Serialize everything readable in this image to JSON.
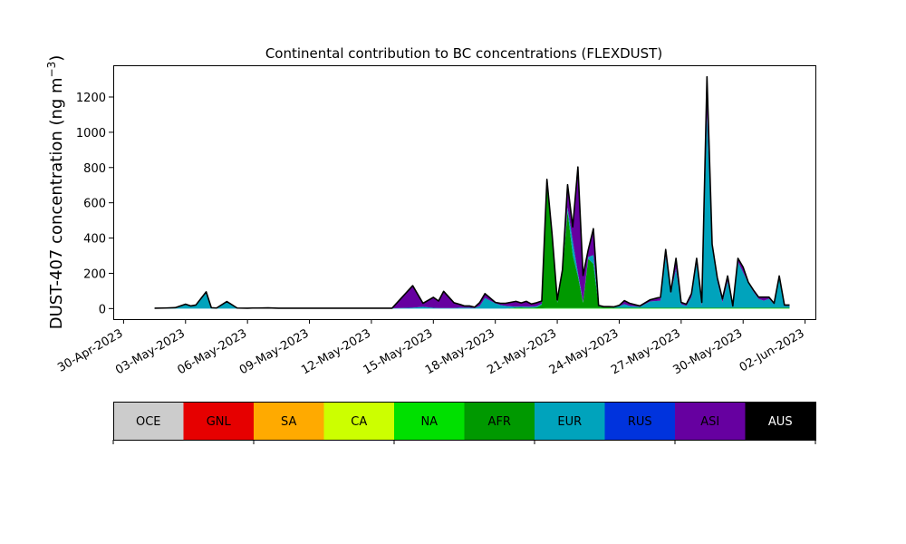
{
  "chart_data": {
    "type": "area",
    "stacked": true,
    "title": "Continental contribution to BC concentrations (FLEXDUST)",
    "ylabel_main": "DUST-407 concentration (ng m",
    "ylabel_sup": "−3",
    "ylabel_close": ")",
    "xlabel": "",
    "xlim": [
      "2023-04-29T12:00",
      "2023-06-02T12:00"
    ],
    "ylim": [
      -60,
      1380
    ],
    "yticks": [
      0,
      200,
      400,
      600,
      800,
      1000,
      1200
    ],
    "xticks": [
      {
        "date": "2023-04-30",
        "label": "30-Apr-2023"
      },
      {
        "date": "2023-05-03",
        "label": "03-May-2023"
      },
      {
        "date": "2023-05-06",
        "label": "06-May-2023"
      },
      {
        "date": "2023-05-09",
        "label": "09-May-2023"
      },
      {
        "date": "2023-05-12",
        "label": "12-May-2023"
      },
      {
        "date": "2023-05-15",
        "label": "15-May-2023"
      },
      {
        "date": "2023-05-18",
        "label": "18-May-2023"
      },
      {
        "date": "2023-05-21",
        "label": "21-May-2023"
      },
      {
        "date": "2023-05-24",
        "label": "24-May-2023"
      },
      {
        "date": "2023-05-27",
        "label": "27-May-2023"
      },
      {
        "date": "2023-05-30",
        "label": "30-May-2023"
      },
      {
        "date": "2023-06-02",
        "label": "02-Jun-2023"
      }
    ],
    "x": [
      "2023-05-01T12:00",
      "2023-05-02T00:00",
      "2023-05-02T12:00",
      "2023-05-03T00:00",
      "2023-05-03T06:00",
      "2023-05-03T12:00",
      "2023-05-04T00:00",
      "2023-05-04T06:00",
      "2023-05-04T12:00",
      "2023-05-05T00:00",
      "2023-05-05T12:00",
      "2023-05-06T00:00",
      "2023-05-06T06:00",
      "2023-05-06T12:00",
      "2023-05-07T00:00",
      "2023-05-07T12:00",
      "2023-05-08T00:00",
      "2023-05-08T12:00",
      "2023-05-09T00:00",
      "2023-05-10T00:00",
      "2023-05-11T00:00",
      "2023-05-12T00:00",
      "2023-05-13T00:00",
      "2023-05-14T00:00",
      "2023-05-14T12:00",
      "2023-05-15T00:00",
      "2023-05-15T06:00",
      "2023-05-15T12:00",
      "2023-05-16T00:00",
      "2023-05-16T06:00",
      "2023-05-16T12:00",
      "2023-05-16T18:00",
      "2023-05-17T00:00",
      "2023-05-17T06:00",
      "2023-05-17T12:00",
      "2023-05-18T00:00",
      "2023-05-18T06:00",
      "2023-05-18T12:00",
      "2023-05-19T00:00",
      "2023-05-19T06:00",
      "2023-05-19T12:00",
      "2023-05-19T18:00",
      "2023-05-20T00:00",
      "2023-05-20T06:00",
      "2023-05-20T12:00",
      "2023-05-20T18:00",
      "2023-05-21T00:00",
      "2023-05-21T06:00",
      "2023-05-21T12:00",
      "2023-05-21T18:00",
      "2023-05-22T00:00",
      "2023-05-22T06:00",
      "2023-05-22T12:00",
      "2023-05-22T18:00",
      "2023-05-23T00:00",
      "2023-05-23T06:00",
      "2023-05-23T12:00",
      "2023-05-23T18:00",
      "2023-05-24T00:00",
      "2023-05-24T06:00",
      "2023-05-24T12:00",
      "2023-05-25T00:00",
      "2023-05-25T12:00",
      "2023-05-26T00:00",
      "2023-05-26T06:00",
      "2023-05-26T12:00",
      "2023-05-26T18:00",
      "2023-05-27T00:00",
      "2023-05-27T06:00",
      "2023-05-27T12:00",
      "2023-05-27T18:00",
      "2023-05-28T00:00",
      "2023-05-28T06:00",
      "2023-05-28T12:00",
      "2023-05-28T18:00",
      "2023-05-29T00:00",
      "2023-05-29T06:00",
      "2023-05-29T12:00",
      "2023-05-29T18:00",
      "2023-05-30T00:00",
      "2023-05-30T06:00",
      "2023-05-30T12:00",
      "2023-05-30T18:00",
      "2023-05-31T00:00",
      "2023-05-31T06:00",
      "2023-05-31T12:00",
      "2023-05-31T18:00",
      "2023-06-01T00:00",
      "2023-06-01T06:00"
    ],
    "series": [
      {
        "name": "OCE",
        "color": "#cccccc",
        "values": [
          0,
          0,
          0,
          0,
          0,
          0,
          0,
          0,
          0,
          0,
          0,
          0,
          0,
          0,
          0,
          0,
          0,
          0,
          0,
          0,
          0,
          0,
          0,
          0,
          0,
          0,
          0,
          0,
          0,
          0,
          0,
          0,
          0,
          0,
          0,
          0,
          0,
          0,
          0,
          0,
          0,
          0,
          0,
          0,
          0,
          0,
          0,
          0,
          0,
          0,
          0,
          0,
          0,
          0,
          0,
          0,
          0,
          0,
          0,
          0,
          0,
          0,
          0,
          0,
          0,
          0,
          0,
          0,
          0,
          0,
          0,
          0,
          0,
          0,
          0,
          0,
          0,
          0,
          0,
          0,
          0,
          0,
          0,
          0,
          0,
          0,
          0,
          0,
          0
        ]
      },
      {
        "name": "GNL",
        "color": "#e60000",
        "values": [
          0,
          0,
          0,
          0,
          0,
          0,
          0,
          0,
          0,
          0,
          0,
          0,
          0,
          0,
          0,
          0,
          0,
          0,
          0,
          0,
          0,
          0,
          0,
          0,
          0,
          0,
          0,
          0,
          0,
          0,
          0,
          0,
          0,
          0,
          0,
          0,
          0,
          0,
          0,
          0,
          0,
          0,
          0,
          0,
          0,
          0,
          0,
          0,
          0,
          0,
          0,
          0,
          0,
          0,
          0,
          0,
          0,
          0,
          0,
          0,
          0,
          0,
          0,
          0,
          0,
          0,
          0,
          0,
          0,
          0,
          0,
          0,
          0,
          0,
          0,
          0,
          0,
          0,
          0,
          0,
          0,
          0,
          0,
          0,
          0,
          0,
          0,
          0,
          0
        ]
      },
      {
        "name": "SA",
        "color": "#ffaa00",
        "values": [
          0,
          0,
          0,
          0,
          0,
          0,
          0,
          0,
          0,
          0,
          0,
          0,
          0,
          0,
          0,
          0,
          0,
          0,
          0,
          0,
          0,
          0,
          0,
          0,
          0,
          0,
          0,
          0,
          0,
          0,
          0,
          0,
          0,
          0,
          0,
          0,
          0,
          0,
          0,
          0,
          0,
          0,
          0,
          0,
          0,
          0,
          0,
          0,
          0,
          0,
          0,
          0,
          0,
          0,
          0,
          0,
          0,
          0,
          0,
          0,
          0,
          0,
          0,
          0,
          0,
          0,
          0,
          0,
          0,
          0,
          0,
          0,
          0,
          0,
          0,
          0,
          0,
          0,
          0,
          0,
          0,
          0,
          0,
          0,
          0,
          0,
          0,
          0,
          0
        ]
      },
      {
        "name": "CA",
        "color": "#ccff00",
        "values": [
          0,
          0,
          0,
          0,
          0,
          0,
          0,
          0,
          0,
          0,
          0,
          0,
          0,
          0,
          0,
          0,
          0,
          0,
          0,
          0,
          0,
          0,
          0,
          0,
          0,
          0,
          0,
          0,
          0,
          0,
          0,
          0,
          0,
          0,
          0,
          0,
          0,
          0,
          0,
          0,
          0,
          0,
          0,
          0,
          0,
          0,
          0,
          0,
          0,
          0,
          0,
          0,
          0,
          0,
          0,
          0,
          0,
          0,
          0,
          0,
          0,
          0,
          0,
          0,
          0,
          0,
          0,
          0,
          0,
          0,
          0,
          0,
          0,
          0,
          0,
          0,
          0,
          0,
          0,
          0,
          0,
          0,
          0,
          0,
          0,
          0,
          0,
          0,
          0
        ]
      },
      {
        "name": "NA",
        "color": "#00e000",
        "values": [
          0,
          0,
          0,
          0,
          0,
          0,
          0,
          0,
          0,
          0,
          0,
          0,
          0,
          0,
          0,
          0,
          0,
          0,
          0,
          0,
          0,
          0,
          0,
          0,
          0,
          0,
          0,
          0,
          0,
          0,
          0,
          0,
          0,
          0,
          0,
          0,
          0,
          0,
          2,
          2,
          2,
          2,
          2,
          2,
          3,
          3,
          3,
          3,
          3,
          3,
          3,
          3,
          3,
          3,
          3,
          2,
          2,
          2,
          2,
          2,
          2,
          2,
          2,
          2,
          2,
          2,
          2,
          2,
          2,
          2,
          2,
          2,
          2,
          2,
          2,
          2,
          2,
          2,
          2,
          2,
          2,
          2,
          2,
          2,
          2,
          2,
          2,
          2,
          2
        ]
      },
      {
        "name": "AFR",
        "color": "#009900",
        "values": [
          0,
          0,
          0,
          0,
          0,
          0,
          0,
          0,
          0,
          0,
          0,
          0,
          0,
          0,
          0,
          0,
          0,
          0,
          0,
          0,
          0,
          0,
          0,
          0,
          0,
          0,
          0,
          0,
          0,
          0,
          0,
          0,
          0,
          0,
          0,
          0,
          0,
          0,
          3,
          4,
          3,
          3,
          5,
          20,
          700,
          400,
          30,
          200,
          550,
          300,
          180,
          30,
          280,
          250,
          10,
          5,
          5,
          3,
          3,
          3,
          3,
          3,
          3,
          3,
          3,
          3,
          3,
          3,
          3,
          3,
          3,
          3,
          3,
          3,
          3,
          3,
          3,
          3,
          3,
          3,
          3,
          3,
          3,
          3,
          3,
          3,
          3,
          3,
          3
        ]
      },
      {
        "name": "EUR",
        "color": "#00a3bc",
        "values": [
          2,
          3,
          5,
          25,
          15,
          20,
          90,
          5,
          3,
          35,
          3,
          2,
          3,
          3,
          2,
          2,
          2,
          2,
          2,
          2,
          2,
          2,
          2,
          5,
          10,
          4,
          3,
          3,
          3,
          5,
          5,
          5,
          3,
          15,
          60,
          30,
          20,
          15,
          6,
          6,
          6,
          6,
          6,
          6,
          10,
          8,
          6,
          6,
          20,
          80,
          20,
          5,
          10,
          50,
          5,
          4,
          4,
          5,
          8,
          20,
          10,
          5,
          35,
          40,
          290,
          80,
          220,
          20,
          10,
          60,
          250,
          10,
          1100,
          350,
          150,
          30,
          150,
          10,
          260,
          200,
          140,
          90,
          50,
          40,
          50,
          20,
          170,
          10,
          10
        ]
      },
      {
        "name": "RUS",
        "color": "#0033dd",
        "values": [
          0,
          0,
          0,
          0,
          0,
          0,
          0,
          0,
          0,
          0,
          0,
          0,
          0,
          0,
          0,
          0,
          0,
          0,
          0,
          0,
          0,
          0,
          0,
          0,
          0,
          0,
          0,
          0,
          0,
          0,
          0,
          0,
          0,
          0,
          0,
          0,
          0,
          0,
          0,
          0,
          0,
          0,
          0,
          0,
          0,
          0,
          0,
          0,
          0,
          0,
          0,
          0,
          0,
          0,
          0,
          0,
          0,
          0,
          0,
          0,
          0,
          0,
          0,
          0,
          0,
          0,
          0,
          0,
          0,
          0,
          0,
          0,
          0,
          0,
          0,
          0,
          0,
          0,
          0,
          0,
          0,
          0,
          0,
          0,
          0,
          0,
          0,
          0,
          0
        ]
      },
      {
        "name": "ASI",
        "color": "#6600a0",
        "values": [
          0,
          0,
          0,
          0,
          0,
          0,
          5,
          0,
          0,
          5,
          0,
          0,
          0,
          0,
          2,
          0,
          0,
          0,
          0,
          0,
          0,
          0,
          0,
          125,
          20,
          60,
          40,
          95,
          30,
          20,
          10,
          10,
          5,
          20,
          25,
          5,
          10,
          15,
          30,
          20,
          30,
          15,
          20,
          15,
          20,
          10,
          10,
          10,
          130,
          80,
          600,
          150,
          40,
          150,
          0,
          0,
          0,
          0,
          5,
          20,
          15,
          5,
          10,
          20,
          40,
          10,
          60,
          10,
          10,
          20,
          30,
          20,
          210,
          10,
          20,
          20,
          30,
          0,
          20,
          30,
          5,
          10,
          10,
          20,
          10,
          5,
          10,
          5,
          5
        ]
      },
      {
        "name": "AUS",
        "color": "#000000",
        "values": [
          0,
          0,
          0,
          0,
          0,
          0,
          0,
          0,
          0,
          0,
          0,
          0,
          0,
          0,
          0,
          0,
          0,
          0,
          0,
          0,
          0,
          0,
          0,
          0,
          0,
          0,
          0,
          0,
          0,
          0,
          0,
          0,
          0,
          0,
          0,
          0,
          0,
          0,
          0,
          0,
          0,
          0,
          0,
          0,
          0,
          0,
          0,
          0,
          0,
          0,
          0,
          0,
          0,
          0,
          0,
          0,
          0,
          0,
          0,
          0,
          0,
          0,
          0,
          0,
          0,
          0,
          0,
          0,
          0,
          0,
          0,
          0,
          0,
          0,
          0,
          0,
          0,
          0,
          0,
          0,
          0,
          0,
          0,
          0,
          0,
          0,
          0,
          0,
          0
        ]
      }
    ],
    "legend": {
      "placement": "bottom",
      "labels": [
        "OCE",
        "GNL",
        "SA",
        "CA",
        "NA",
        "AFR",
        "EUR",
        "RUS",
        "ASI",
        "AUS"
      ],
      "text_colors": [
        "#000000",
        "#000000",
        "#000000",
        "#000000",
        "#000000",
        "#000000",
        "#000000",
        "#000000",
        "#000000",
        "#ffffff"
      ]
    },
    "grid": false
  }
}
